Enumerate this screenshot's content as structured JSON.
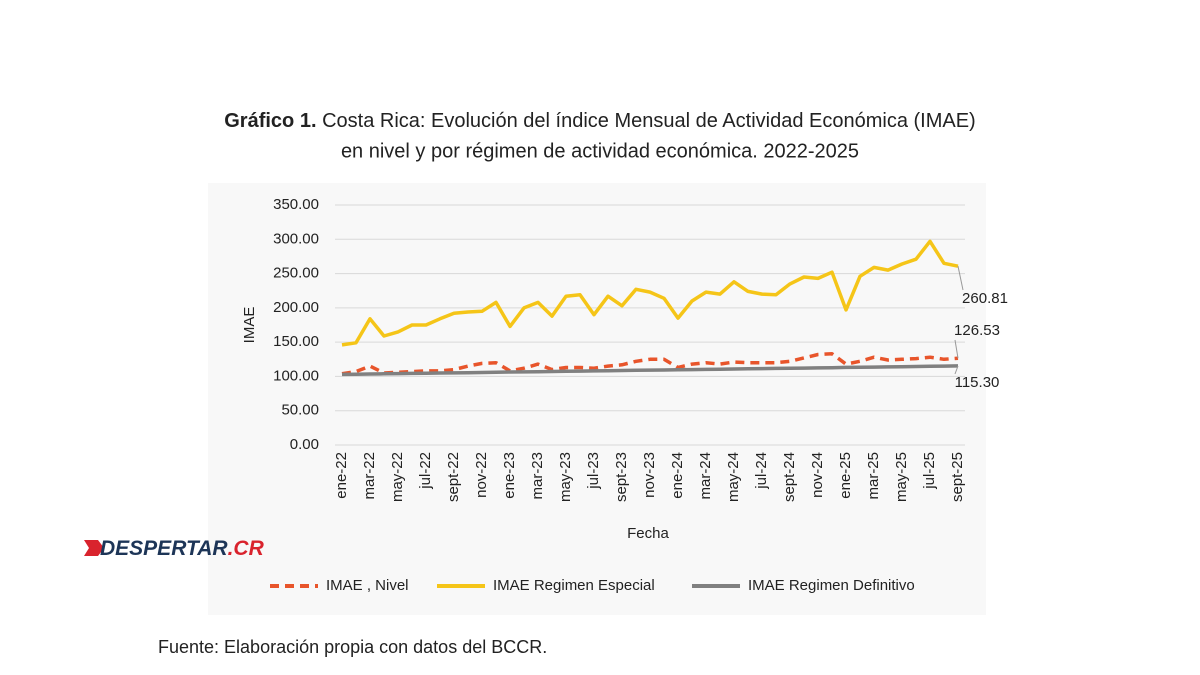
{
  "chart_data": {
    "type": "line",
    "title_prefix": "Gráfico 1.",
    "title_lines": [
      "Costa Rica: Evolución del índice Mensual de Actividad Económica (IMAE)",
      "en nivel y por régimen de actividad económica. 2022-2025"
    ],
    "x_label": "Fecha",
    "y_label": "IMAE",
    "categories": [
      "ene-22",
      null,
      "mar-22",
      null,
      "may-22",
      null,
      "jul-22",
      null,
      "sept-22",
      null,
      "nov-22",
      null,
      "ene-23",
      null,
      "mar-23",
      null,
      "may-23",
      null,
      "jul-23",
      null,
      "sept-23",
      null,
      "nov-23",
      null,
      "ene-24",
      null,
      "mar-24",
      null,
      "may-24",
      null,
      "jul-24",
      null,
      "sept-24",
      null,
      "nov-24",
      null,
      "ene-25",
      null,
      "mar-25",
      null,
      "may-25",
      null,
      "jul-25",
      null,
      "sept-25"
    ],
    "ylim": [
      0,
      350
    ],
    "yticks": [
      {
        "value": 0,
        "label": "0.00"
      },
      {
        "value": 50,
        "label": "50.00"
      },
      {
        "value": 100,
        "label": "100.00"
      },
      {
        "value": 150,
        "label": "150.00"
      },
      {
        "value": 200,
        "label": "200.00"
      },
      {
        "value": 250,
        "label": "250.00"
      },
      {
        "value": 300,
        "label": "300.00"
      },
      {
        "value": 350,
        "label": "350.00"
      }
    ],
    "grid": true,
    "legend": "bottom",
    "series": [
      {
        "name": "IMAE , Nivel",
        "color": "#e8552b",
        "dashed": true,
        "values": [
          104,
          107,
          115,
          105,
          106,
          107,
          108,
          108,
          110,
          115,
          119,
          120,
          108,
          112,
          118,
          110,
          113,
          113,
          112,
          115,
          117,
          122,
          125,
          125,
          113,
          118,
          120,
          118,
          121,
          120,
          120,
          120,
          122,
          127,
          132,
          133,
          118,
          122,
          128,
          124,
          125,
          126,
          128,
          125,
          126.53
        ],
        "value_labels": [
          null,
          null,
          null,
          null,
          null,
          null,
          null,
          null,
          null,
          null,
          null,
          null,
          null,
          null,
          null,
          null,
          null,
          null,
          null,
          null,
          null,
          null,
          null,
          null,
          null,
          null,
          null,
          null,
          null,
          null,
          null,
          null,
          null,
          null,
          null,
          null,
          null,
          null,
          null,
          null,
          null,
          null,
          null,
          null,
          "126.53"
        ]
      },
      {
        "name": "IMAE Regimen Especial",
        "color": "#f5c518",
        "dashed": false,
        "values": [
          146,
          149,
          184,
          159,
          165,
          175,
          175,
          184,
          192,
          194,
          195,
          208,
          173,
          200,
          208,
          188,
          217,
          219,
          190,
          217,
          203,
          227,
          223,
          214,
          185,
          210,
          223,
          220,
          238,
          224,
          220,
          219,
          235,
          245,
          243,
          252,
          197,
          246,
          259,
          255,
          264,
          271,
          297,
          265,
          260.81
        ],
        "value_labels": [
          null,
          null,
          null,
          null,
          null,
          null,
          null,
          null,
          null,
          null,
          null,
          null,
          null,
          null,
          null,
          null,
          null,
          null,
          null,
          null,
          null,
          null,
          null,
          null,
          null,
          null,
          null,
          null,
          null,
          null,
          null,
          null,
          null,
          null,
          null,
          null,
          null,
          null,
          null,
          null,
          null,
          null,
          null,
          null,
          "260.81"
        ]
      },
      {
        "name": "IMAE Regimen Definitivo",
        "color": "#808080",
        "dashed": false,
        "values": [
          103.0,
          103.3,
          103.6,
          103.8,
          104.1,
          104.4,
          104.7,
          105.0,
          105.2,
          105.5,
          105.8,
          106.1,
          106.4,
          106.6,
          106.9,
          107.2,
          107.5,
          107.8,
          108.0,
          108.3,
          108.6,
          108.9,
          109.2,
          109.4,
          109.7,
          110.0,
          110.3,
          110.6,
          110.8,
          111.1,
          111.4,
          111.7,
          112.0,
          112.2,
          112.5,
          112.8,
          113.1,
          113.4,
          113.6,
          113.9,
          114.2,
          114.5,
          114.8,
          115.0,
          115.3
        ],
        "value_labels": [
          null,
          null,
          null,
          null,
          null,
          null,
          null,
          null,
          null,
          null,
          null,
          null,
          null,
          null,
          null,
          null,
          null,
          null,
          null,
          null,
          null,
          null,
          null,
          null,
          null,
          null,
          null,
          null,
          null,
          null,
          null,
          null,
          null,
          null,
          null,
          null,
          null,
          null,
          null,
          null,
          null,
          null,
          null,
          null,
          "115.30"
        ]
      }
    ]
  },
  "logo_main": "DESPERTAR",
  "logo_suffix": ".CR",
  "source": "Fuente: Elaboración propia con datos del BCCR."
}
